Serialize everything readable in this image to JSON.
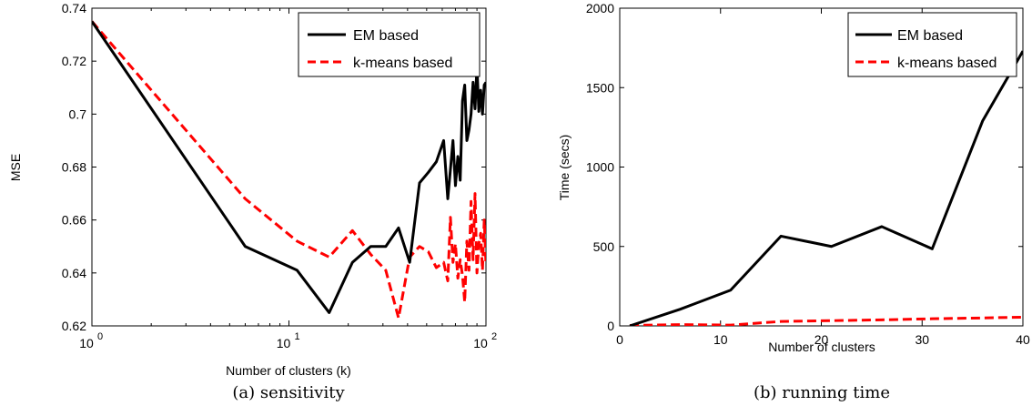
{
  "chart_data": [
    {
      "type": "line",
      "caption": "(a) sensitivity",
      "xlabel": "Number of clusters (k)",
      "ylabel": "MSE",
      "xscale": "log",
      "xlim": [
        1,
        100
      ],
      "ylim": [
        0.62,
        0.74
      ],
      "xticks": [
        {
          "value": 1,
          "base": "10",
          "exp": "0"
        },
        {
          "value": 10,
          "base": "10",
          "exp": "1"
        },
        {
          "value": 100,
          "base": "10",
          "exp": "2"
        }
      ],
      "yticks": [
        {
          "value": 0.62,
          "label": "0.62"
        },
        {
          "value": 0.64,
          "label": "0.64"
        },
        {
          "value": 0.66,
          "label": "0.66"
        },
        {
          "value": 0.68,
          "label": "0.68"
        },
        {
          "value": 0.7,
          "label": "0.7"
        },
        {
          "value": 0.72,
          "label": "0.72"
        },
        {
          "value": 0.74,
          "label": "0.74"
        }
      ],
      "grid": false,
      "legend_position": "top-right",
      "series": [
        {
          "name": "EM based",
          "color": "#000000",
          "style": "solid",
          "x": [
            1,
            6,
            11,
            16,
            21,
            26,
            31,
            36,
            41,
            46,
            51,
            56,
            61,
            64,
            66,
            68,
            70,
            72,
            74,
            76,
            78,
            80,
            82,
            84,
            86,
            88,
            90,
            92,
            94,
            96,
            98,
            100
          ],
          "y": [
            0.735,
            0.65,
            0.641,
            0.625,
            0.644,
            0.65,
            0.65,
            0.657,
            0.644,
            0.674,
            0.678,
            0.682,
            0.69,
            0.668,
            0.679,
            0.69,
            0.673,
            0.684,
            0.675,
            0.705,
            0.711,
            0.69,
            0.694,
            0.7,
            0.712,
            0.702,
            0.718,
            0.701,
            0.709,
            0.7,
            0.711,
            0.712
          ]
        },
        {
          "name": "k-means based",
          "color": "#ff0000",
          "style": "dashed",
          "x": [
            1,
            6,
            11,
            16,
            21,
            26,
            31,
            36,
            41,
            46,
            51,
            56,
            61,
            64,
            66,
            68,
            70,
            72,
            74,
            76,
            78,
            80,
            82,
            84,
            86,
            88,
            90,
            92,
            94,
            96,
            98,
            100
          ],
          "y": [
            0.735,
            0.668,
            0.652,
            0.646,
            0.656,
            0.647,
            0.641,
            0.623,
            0.646,
            0.65,
            0.648,
            0.642,
            0.644,
            0.637,
            0.661,
            0.644,
            0.651,
            0.638,
            0.645,
            0.639,
            0.629,
            0.652,
            0.641,
            0.667,
            0.645,
            0.67,
            0.64,
            0.651,
            0.655,
            0.641,
            0.66,
            0.643
          ]
        }
      ]
    },
    {
      "type": "line",
      "caption": "(b) running time",
      "xlabel": "Number of clusters",
      "ylabel": "Time (secs)",
      "xscale": "linear",
      "xlim": [
        0,
        40
      ],
      "ylim": [
        0,
        2000
      ],
      "xticks": [
        {
          "value": 0,
          "label": "0"
        },
        {
          "value": 10,
          "label": "10"
        },
        {
          "value": 20,
          "label": "20"
        },
        {
          "value": 30,
          "label": "30"
        },
        {
          "value": 40,
          "label": "40"
        }
      ],
      "yticks": [
        {
          "value": 0,
          "label": "0"
        },
        {
          "value": 500,
          "label": "500"
        },
        {
          "value": 1000,
          "label": "1000"
        },
        {
          "value": 1500,
          "label": "1500"
        },
        {
          "value": 2000,
          "label": "2000"
        }
      ],
      "grid": false,
      "legend_position": "top-right",
      "series": [
        {
          "name": "EM based",
          "color": "#000000",
          "style": "solid",
          "x": [
            1,
            6,
            11,
            16,
            21,
            26,
            31,
            36,
            40
          ],
          "y": [
            0,
            105,
            225,
            565,
            500,
            625,
            485,
            1290,
            1730
          ]
        },
        {
          "name": "k-means based",
          "color": "#ff0000",
          "style": "dashed",
          "x": [
            1,
            6,
            11,
            16,
            21,
            26,
            31,
            36,
            40
          ],
          "y": [
            3,
            8,
            5,
            28,
            33,
            38,
            45,
            50,
            55
          ]
        }
      ]
    }
  ]
}
